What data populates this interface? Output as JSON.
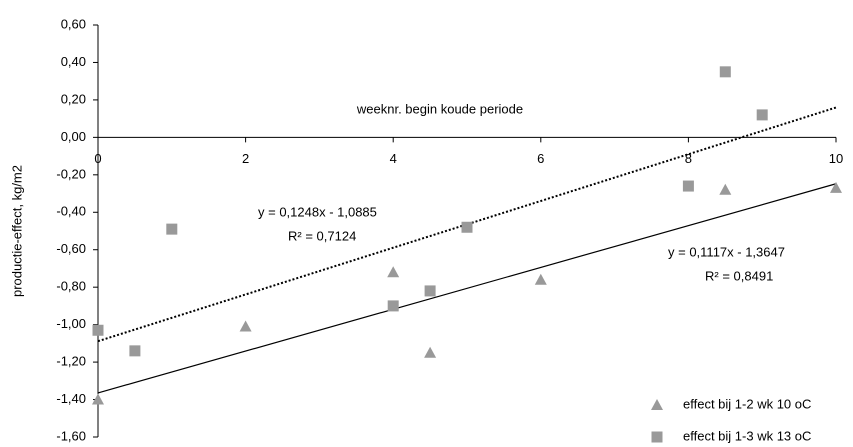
{
  "chart_data": {
    "type": "scatter",
    "y_label": "productie-effect, kg/m2",
    "x_label": "weeknr. begin koude periode",
    "xlim": [
      0,
      10
    ],
    "xticks": [
      0,
      2,
      4,
      6,
      8,
      10
    ],
    "ylim": [
      -1.6,
      0.6
    ],
    "yticks": [
      {
        "value": -1.6,
        "label": "-1,60"
      },
      {
        "value": -1.4,
        "label": "-1,40"
      },
      {
        "value": -1.2,
        "label": "-1,20"
      },
      {
        "value": -1.0,
        "label": "-1,00"
      },
      {
        "value": -0.8,
        "label": "-0,80"
      },
      {
        "value": -0.6,
        "label": "-0,60"
      },
      {
        "value": -0.4,
        "label": "-0,40"
      },
      {
        "value": -0.2,
        "label": "-0,20"
      },
      {
        "value": 0,
        "label": "0,00"
      },
      {
        "value": 0.2,
        "label": "0,20"
      },
      {
        "value": 0.4,
        "label": "0,40"
      },
      {
        "value": 0.6,
        "label": "0,60"
      }
    ],
    "legend": "bottom-right",
    "series": [
      {
        "name": "effect bij 1-2 wk 10 oC",
        "color": "#999999",
        "marker": "triangle",
        "x": [
          0,
          2,
          4,
          4.5,
          6,
          8.5,
          10
        ],
        "values": [
          -1.4,
          -1.01,
          -0.72,
          -1.15,
          -0.76,
          -0.28,
          -0.27
        ]
      },
      {
        "name": "effect bij 1-3 wk 13 oC",
        "color": "#999999",
        "marker": "square",
        "x": [
          0,
          0.5,
          1,
          4,
          4.5,
          5,
          8,
          8.5,
          9
        ],
        "values": [
          -1.03,
          -1.14,
          -0.49,
          -0.9,
          -0.82,
          -0.48,
          -0.26,
          0.35,
          0.12
        ]
      }
    ],
    "trendlines": [
      {
        "slope": 0.1117,
        "intercept": -1.3647,
        "style": "solid",
        "equation": "y =  0,1117x - 1,3647",
        "r_squared": "R² =  0,8491"
      },
      {
        "slope": 0.1248,
        "intercept": -1.0885,
        "style": "dotted",
        "equation": "y =  0,1248x - 1,0885",
        "r_squared": "R² =  0,7124"
      }
    ]
  }
}
